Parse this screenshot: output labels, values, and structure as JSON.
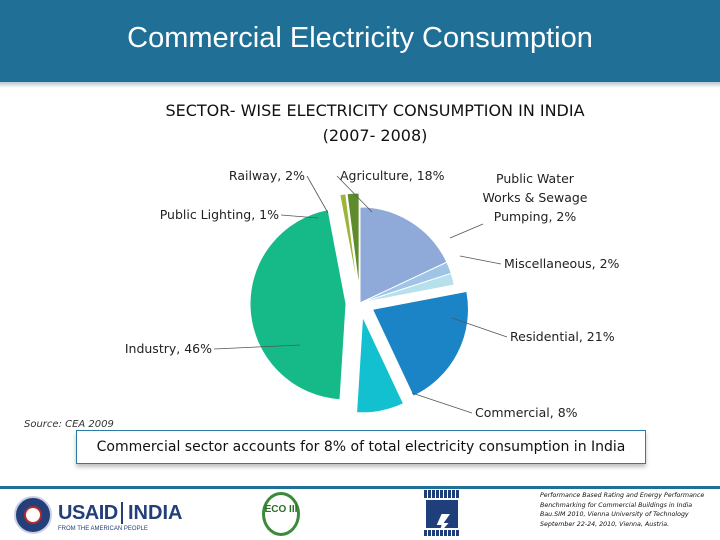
{
  "header": {
    "title": "Commercial Electricity Consumption"
  },
  "chart_data": {
    "type": "pie",
    "title_line1": "SECTOR- WISE ELECTRICITY CONSUMPTION IN INDIA",
    "title_line2": "(2007- 2008)",
    "unit": "%",
    "legend": "none",
    "slices": [
      {
        "label": "Agriculture, 18%",
        "value": 18,
        "color": "#8fa9d8",
        "exploded": false
      },
      {
        "label": "Public Water Works & Sewage Pumping, 2%",
        "value": 2,
        "color": "#9fc4e6",
        "exploded": false
      },
      {
        "label": "Miscellaneous, 2%",
        "value": 2,
        "color": "#b6e1ec",
        "exploded": false
      },
      {
        "label": "Residential, 21%",
        "value": 21,
        "color": "#1a84c7",
        "exploded": true
      },
      {
        "label": "Commercial, 8%",
        "value": 8,
        "color": "#12c0cf",
        "exploded": true
      },
      {
        "label": "Industry, 46%",
        "value": 46,
        "color": "#16ba88",
        "exploded": true
      },
      {
        "label": "Public Lighting, 1%",
        "value": 1,
        "color": "#9db53a",
        "exploded": true
      },
      {
        "label": "Railway, 2%",
        "value": 2,
        "color": "#5e8c2b",
        "exploded": true
      }
    ]
  },
  "source": "Source: CEA 2009",
  "callout": "Commercial sector accounts for 8% of total electricity consumption in India",
  "footer": {
    "usaid": "USAID",
    "india": "INDIA",
    "usaid_sub": "FROM THE AMERICAN PEOPLE",
    "eco": "ECO III",
    "conference": [
      "Performance Based Rating and Energy Performance",
      "Benchmarking for Commercial Buildings in India",
      "Bau.SIM 2010, Vienna University of Technology",
      "September 22-24, 2010, Vienna, Austria."
    ]
  }
}
